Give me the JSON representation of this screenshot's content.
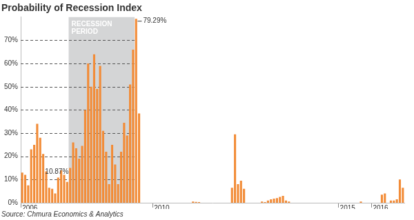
{
  "chart_data": {
    "type": "bar",
    "title": "Probability of Recession Index",
    "subtitle": "Source: Chmura Economics & Analytics",
    "color": "#f28c38",
    "grid": true,
    "ylim": [
      0,
      80
    ],
    "yticks": [
      {
        "value": 0,
        "label": "0%"
      },
      {
        "value": 10,
        "label": "10%"
      },
      {
        "value": 20,
        "label": "20%"
      },
      {
        "value": 30,
        "label": "30%"
      },
      {
        "value": 40,
        "label": "40%"
      },
      {
        "value": 50,
        "label": "50%"
      },
      {
        "value": 60,
        "label": "60%"
      },
      {
        "value": 70,
        "label": "70%"
      }
    ],
    "shaded_region": {
      "label": [
        "RECESSION",
        "PERIOD"
      ],
      "start_index": 16,
      "end_index": 37
    },
    "annotations": [
      {
        "text": "10.87%",
        "index": 12
      },
      {
        "text": "79.29%",
        "index": 38
      }
    ],
    "categories": [
      "2006",
      null,
      null,
      null,
      null,
      null,
      null,
      null,
      null,
      null,
      null,
      null,
      null,
      null,
      null,
      null,
      null,
      null,
      null,
      null,
      null,
      null,
      null,
      null,
      null,
      null,
      null,
      null,
      null,
      null,
      null,
      null,
      null,
      null,
      null,
      null,
      null,
      null,
      null,
      null,
      null,
      null,
      null,
      null,
      "2010",
      null,
      null,
      null,
      null,
      null,
      null,
      null,
      null,
      null,
      null,
      null,
      null,
      null,
      null,
      null,
      null,
      null,
      null,
      null,
      null,
      null,
      null,
      null,
      null,
      null,
      null,
      null,
      null,
      null,
      null,
      null,
      null,
      null,
      null,
      null,
      null,
      null,
      null,
      null,
      null,
      null,
      null,
      null,
      null,
      null,
      null,
      null,
      null,
      null,
      null,
      null,
      null,
      null,
      null,
      null,
      null,
      null,
      null,
      null,
      null,
      null,
      "2015",
      null,
      null,
      null,
      null,
      null,
      null,
      null,
      null,
      null,
      null,
      "2016",
      null,
      null,
      null,
      null,
      null,
      null,
      null,
      null,
      null,
      null
    ],
    "values": [
      13,
      12,
      7.5,
      23,
      25,
      34,
      28,
      21,
      13.5,
      6.5,
      6,
      4,
      10.87,
      14,
      12,
      9,
      15,
      26,
      23.5,
      19,
      24.5,
      40,
      60,
      50,
      64,
      49,
      59,
      31,
      22,
      8,
      25,
      16.5,
      8,
      22,
      34.5,
      29,
      51,
      66,
      79.29,
      38.5,
      0,
      0,
      0,
      0,
      0,
      0,
      0,
      0,
      0,
      0,
      0,
      0,
      0,
      0,
      0,
      0,
      0,
      0.5,
      0.4,
      0.3,
      0,
      0,
      0,
      0,
      0,
      0,
      0,
      0,
      0,
      0,
      6.5,
      29.5,
      8,
      9.5,
      6,
      0,
      0,
      0,
      0,
      0,
      0.5,
      0.3,
      1,
      1.5,
      1.8,
      2,
      2.5,
      3,
      1,
      0.5,
      0,
      0,
      0,
      0,
      0,
      0,
      0,
      0,
      0,
      0,
      0,
      0,
      0,
      0,
      0,
      0,
      0,
      0,
      0,
      0,
      0,
      0,
      0,
      0.5,
      0,
      0,
      0,
      0,
      0,
      0,
      3.5,
      4,
      0,
      1,
      1,
      1.5,
      10,
      6.5
    ]
  }
}
